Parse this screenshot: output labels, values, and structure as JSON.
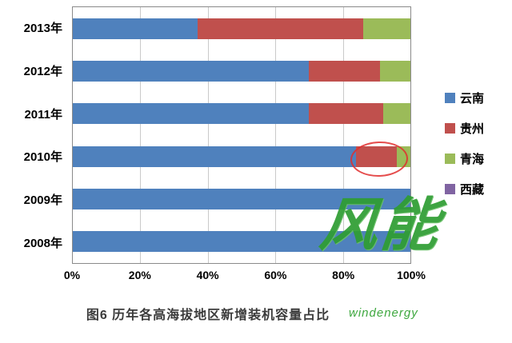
{
  "chart_data": {
    "type": "bar",
    "orientation": "horizontal",
    "stacked": true,
    "percent_stacked": true,
    "title": "图6 历年各高海拔地区新增装机容量占比",
    "categories": [
      "2013年",
      "2012年",
      "2011年",
      "2010年",
      "2009年",
      "2008年"
    ],
    "series": [
      {
        "name": "云南",
        "color": "#4F81BD",
        "values": [
          37,
          70,
          70,
          84,
          100,
          100
        ]
      },
      {
        "name": "贵州",
        "color": "#C0504D",
        "values": [
          49,
          21,
          22,
          12,
          0,
          0
        ]
      },
      {
        "name": "青海",
        "color": "#9BBB59",
        "values": [
          14,
          9,
          8,
          4,
          0,
          0
        ]
      },
      {
        "name": "西藏",
        "color": "#8064A2",
        "values": [
          0,
          0,
          0,
          0,
          0,
          0
        ]
      }
    ],
    "x_ticks": [
      {
        "label": "0%",
        "value": 0
      },
      {
        "label": "20%",
        "value": 20
      },
      {
        "label": "40%",
        "value": 40
      },
      {
        "label": "60%",
        "value": 60
      },
      {
        "label": "80%",
        "value": 80
      },
      {
        "label": "100%",
        "value": 100
      }
    ],
    "xlim": [
      0,
      100
    ],
    "grid": true,
    "legend_position": "right"
  },
  "watermark": {
    "logo": "风能",
    "url": "windenergy"
  }
}
